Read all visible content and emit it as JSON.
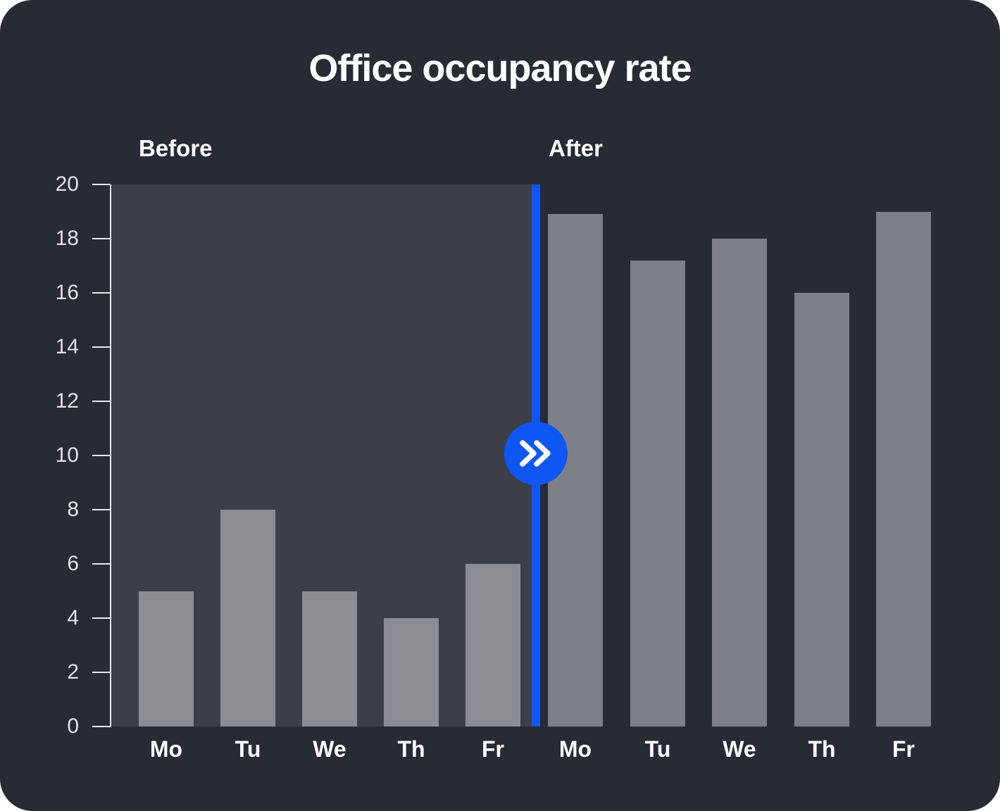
{
  "page": {
    "title": "Office occupancy rate"
  },
  "sections": {
    "before_label": "Before",
    "after_label": "After"
  },
  "icons": {
    "divider_handle": "double-chevron-right-icon"
  },
  "colors": {
    "page_bg": "#FFFFFF",
    "card_bg": "#272B33",
    "before_panel_bg": "#3C3F48",
    "bar_before": "#8B8D93",
    "bar_after": "#7D8086",
    "accent_blue": "#0E57F5",
    "axis": "#E8E9EB",
    "text": "#FFFFFF",
    "tick_label": "#E2E3E5"
  },
  "chart_data": {
    "type": "bar",
    "title": "Office occupancy rate",
    "categories": [
      "Mo",
      "Tu",
      "We",
      "Th",
      "Fr"
    ],
    "series": [
      {
        "name": "Before",
        "values": [
          5,
          8,
          5,
          4,
          6
        ]
      },
      {
        "name": "After",
        "values": [
          18.9,
          17.2,
          18,
          16,
          19
        ]
      }
    ],
    "xlabel": "",
    "ylabel": "",
    "ylim": [
      0,
      20
    ],
    "y_ticks": [
      0,
      2,
      4,
      6,
      8,
      10,
      12,
      14,
      16,
      18,
      20
    ],
    "grid": false,
    "legend_position": "section-labels-above"
  }
}
